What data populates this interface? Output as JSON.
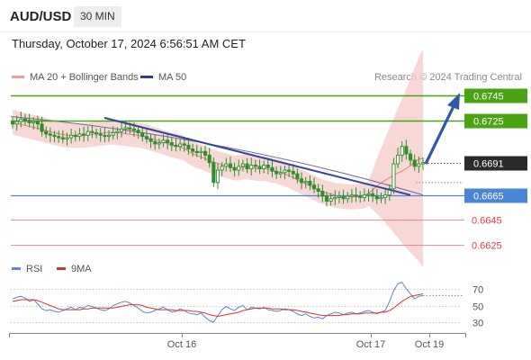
{
  "header": {
    "symbol": "AUD/USD",
    "timeframe": "30 MIN",
    "datetime": "Thursday, October 17, 2024 6:56:51 AM CET"
  },
  "legend": {
    "bollinger": "MA 20 + Bollinger Bands",
    "ma50": "MA 50",
    "credit": "Research © 2024 Trading Central",
    "rsi": "RSI",
    "rsi_ma": "9MA"
  },
  "colors": {
    "green_level": "#4aa312",
    "blue_level": "#4a86d8",
    "red_level": "#e86c6c",
    "current_price": "#2b2b2b",
    "candle": "#2f8f2f",
    "band": "#f6c9c9",
    "ma20": "#e87f7f",
    "ma50": "#6e6e9e",
    "trendline": "#35459a",
    "arrow": "#2f5aa8",
    "rsi": "#5a86d8",
    "rsi_ma": "#d83030"
  },
  "chart_data": [
    {
      "type": "candlestick",
      "levels": [
        {
          "label": "0.6745",
          "value": 0.6745,
          "style": "green-line-and-tag"
        },
        {
          "label": "0.6725",
          "value": 0.6725,
          "style": "green-line-and-tag"
        },
        {
          "label": "0.6691",
          "value": 0.6691,
          "style": "current-price-tag"
        },
        {
          "label": "0.6665",
          "value": 0.6665,
          "style": "blue-line-and-tag"
        },
        {
          "label": "0.6645",
          "value": 0.6645,
          "style": "red-line-text"
        },
        {
          "label": "0.6625",
          "value": 0.6625,
          "style": "red-line-text"
        }
      ],
      "ylim": [
        0.662,
        0.6752
      ],
      "x_tick_labels": [
        "Oct 16",
        "Oct 17",
        "Oct 19"
      ],
      "closes": [
        0.6722,
        0.6724,
        0.6726,
        0.6725,
        0.6723,
        0.6724,
        0.6722,
        0.6716,
        0.6714,
        0.6713,
        0.6712,
        0.6711,
        0.671,
        0.6711,
        0.6713,
        0.6712,
        0.6714,
        0.6713,
        0.6716,
        0.6715,
        0.6714,
        0.6713,
        0.6712,
        0.6713,
        0.6715,
        0.6716,
        0.6718,
        0.6719,
        0.6718,
        0.6717,
        0.6715,
        0.6712,
        0.671,
        0.6708,
        0.6706,
        0.6707,
        0.6709,
        0.6707,
        0.6705,
        0.6704,
        0.6706,
        0.6705,
        0.6702,
        0.67,
        0.6699,
        0.67,
        0.6697,
        0.6691,
        0.6675,
        0.6685,
        0.6688,
        0.669,
        0.6687,
        0.6685,
        0.6688,
        0.669,
        0.6686,
        0.6689,
        0.6688,
        0.6686,
        0.6689,
        0.6687,
        0.6684,
        0.6682,
        0.6683,
        0.6685,
        0.6684,
        0.6682,
        0.6678,
        0.6675,
        0.6676,
        0.6673,
        0.667,
        0.6668,
        0.6664,
        0.666,
        0.6662,
        0.6663,
        0.6664,
        0.6662,
        0.6664,
        0.6665,
        0.6664,
        0.6663,
        0.6665,
        0.6666,
        0.6664,
        0.6662,
        0.6663,
        0.6665,
        0.667,
        0.669,
        0.6697,
        0.6704,
        0.6698,
        0.6693,
        0.6688,
        0.669,
        0.6691
      ],
      "ma50_endpoints": [
        0.6728,
        0.6665
      ],
      "trendline_endpoints": [
        0.6727,
        0.6665
      ]
    },
    {
      "type": "line",
      "title": "RSI",
      "series": [
        {
          "name": "RSI"
        },
        {
          "name": "9MA"
        }
      ],
      "y_tick_labels": [
        "70",
        "50",
        "30"
      ],
      "ylim": [
        20,
        80
      ],
      "rsi": [
        58,
        60,
        61,
        59,
        55,
        57,
        52,
        46,
        44,
        45,
        43,
        42,
        44,
        46,
        48,
        45,
        48,
        47,
        50,
        49,
        47,
        45,
        44,
        46,
        50,
        52,
        54,
        55,
        53,
        50,
        47,
        43,
        41,
        42,
        44,
        46,
        48,
        45,
        42,
        43,
        46,
        44,
        41,
        40,
        39,
        41,
        36,
        32,
        30,
        38,
        45,
        49,
        46,
        44,
        48,
        50,
        45,
        48,
        47,
        46,
        48,
        45,
        44,
        43,
        44,
        46,
        45,
        43,
        40,
        38,
        40,
        37,
        35,
        36,
        34,
        38,
        40,
        42,
        41,
        39,
        41,
        42,
        40,
        41,
        43,
        44,
        42,
        40,
        42,
        44,
        55,
        68,
        76,
        78,
        70,
        64,
        58,
        61,
        62
      ],
      "rsi_ma": [
        55,
        56,
        57,
        57,
        57,
        57,
        56,
        54,
        52,
        50,
        48,
        46,
        45,
        45,
        45,
        45,
        45,
        46,
        46,
        47,
        47,
        47,
        47,
        47,
        47,
        48,
        49,
        50,
        51,
        51,
        51,
        50,
        48,
        47,
        46,
        45,
        45,
        45,
        45,
        44,
        44,
        44,
        44,
        43,
        43,
        42,
        41,
        39,
        38,
        37,
        38,
        39,
        40,
        41,
        42,
        44,
        45,
        46,
        47,
        47,
        47,
        47,
        46,
        46,
        46,
        45,
        45,
        45,
        44,
        43,
        42,
        41,
        40,
        39,
        38,
        38,
        38,
        38,
        38,
        39,
        39,
        40,
        40,
        40,
        41,
        41,
        41,
        41,
        42,
        42,
        44,
        47,
        51,
        55,
        58,
        61,
        62,
        63,
        64
      ]
    }
  ]
}
